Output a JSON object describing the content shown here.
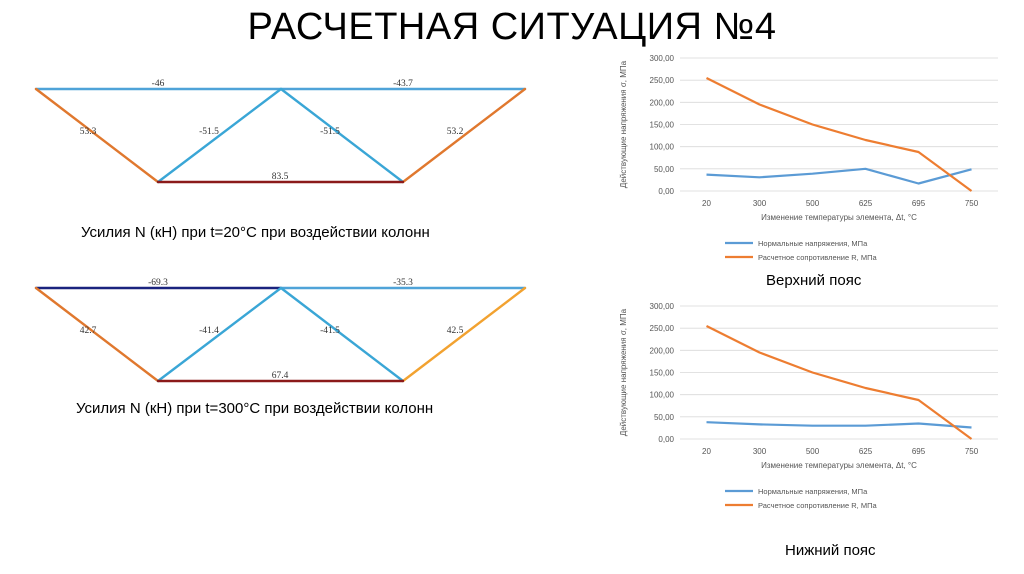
{
  "title": "РАСЧЕТНАЯ СИТУАЦИЯ №4",
  "trusses": [
    {
      "caption": "Усилия N (кН) при t=20°C при воздействии колонн",
      "members": [
        {
          "name": "top-chord-left",
          "from": "A",
          "to": "B",
          "force": "-46",
          "color": "#4fa3d8"
        },
        {
          "name": "top-chord-right",
          "from": "B",
          "to": "C",
          "force": "-43.7",
          "color": "#4fa3d8"
        },
        {
          "name": "diagonal-left-outer",
          "from": "A",
          "to": "D",
          "force": "53.3",
          "color": "#e0782e"
        },
        {
          "name": "diagonal-left-inner",
          "from": "D",
          "to": "B",
          "force": "-51.5",
          "color": "#3aa6d6"
        },
        {
          "name": "diagonal-right-inner",
          "from": "B",
          "to": "E",
          "force": "-51.5",
          "color": "#3aa6d6"
        },
        {
          "name": "diagonal-right-outer",
          "from": "E",
          "to": "C",
          "force": "53.2",
          "color": "#e0782e"
        },
        {
          "name": "bottom-chord",
          "from": "D",
          "to": "E",
          "force": "83.5",
          "color": "#8b1a1a"
        }
      ]
    },
    {
      "caption": "Усилия N (кН) при t=300°C при воздействии колонн",
      "members": [
        {
          "name": "top-chord-left",
          "from": "A",
          "to": "B",
          "force": "-69.3",
          "color": "#1a237e"
        },
        {
          "name": "top-chord-right",
          "from": "B",
          "to": "C",
          "force": "-35.3",
          "color": "#4fa3d8"
        },
        {
          "name": "diagonal-left-outer",
          "from": "A",
          "to": "D",
          "force": "42.7",
          "color": "#e0782e"
        },
        {
          "name": "diagonal-left-inner",
          "from": "D",
          "to": "B",
          "force": "-41.4",
          "color": "#3aa6d6"
        },
        {
          "name": "diagonal-right-inner",
          "from": "B",
          "to": "E",
          "force": "-41.5",
          "color": "#3aa6d6"
        },
        {
          "name": "diagonal-right-outer",
          "from": "E",
          "to": "C",
          "force": "42.5",
          "color": "#f2a230"
        },
        {
          "name": "bottom-chord",
          "from": "D",
          "to": "E",
          "force": "67.4",
          "color": "#8b1a1a"
        }
      ]
    }
  ],
  "chart_data": [
    {
      "type": "line",
      "caption": "Верхний пояс",
      "categories": [
        "20",
        "300",
        "500",
        "625",
        "695",
        "750"
      ],
      "series": [
        {
          "name": "Нормальные напряжения, МПа",
          "color": "#5b9bd5",
          "values": [
            37,
            31,
            39,
            50,
            17,
            49
          ]
        },
        {
          "name": "Расчетное сопротивление R, МПа",
          "color": "#ed7d31",
          "values": [
            255,
            195,
            150,
            115,
            88,
            0
          ]
        }
      ],
      "xlabel": "Изменение температуры элемента, Δt, °С",
      "ylabel": "Действующие напряжения σ, МПа",
      "ylim": [
        0,
        300
      ],
      "yticks": [
        "0,00",
        "50,00",
        "100,00",
        "150,00",
        "200,00",
        "250,00",
        "300,00"
      ],
      "grid": true,
      "legend": "bottom-left"
    },
    {
      "type": "line",
      "caption": "Нижний пояс",
      "categories": [
        "20",
        "300",
        "500",
        "625",
        "695",
        "750"
      ],
      "series": [
        {
          "name": "Нормальные напряжения, МПа",
          "color": "#5b9bd5",
          "values": [
            38,
            33,
            30,
            30,
            35,
            26
          ]
        },
        {
          "name": "Расчетное сопротивление R, МПа",
          "color": "#ed7d31",
          "values": [
            255,
            195,
            150,
            115,
            88,
            0
          ]
        }
      ],
      "xlabel": "Изменение температуры элемента, Δt, °С",
      "ylabel": "Действующие напряжения σ, МПа",
      "ylim": [
        0,
        300
      ],
      "yticks": [
        "0,00",
        "50,00",
        "100,00",
        "150,00",
        "200,00",
        "250,00",
        "300,00"
      ],
      "grid": true,
      "legend": "bottom-left"
    }
  ]
}
